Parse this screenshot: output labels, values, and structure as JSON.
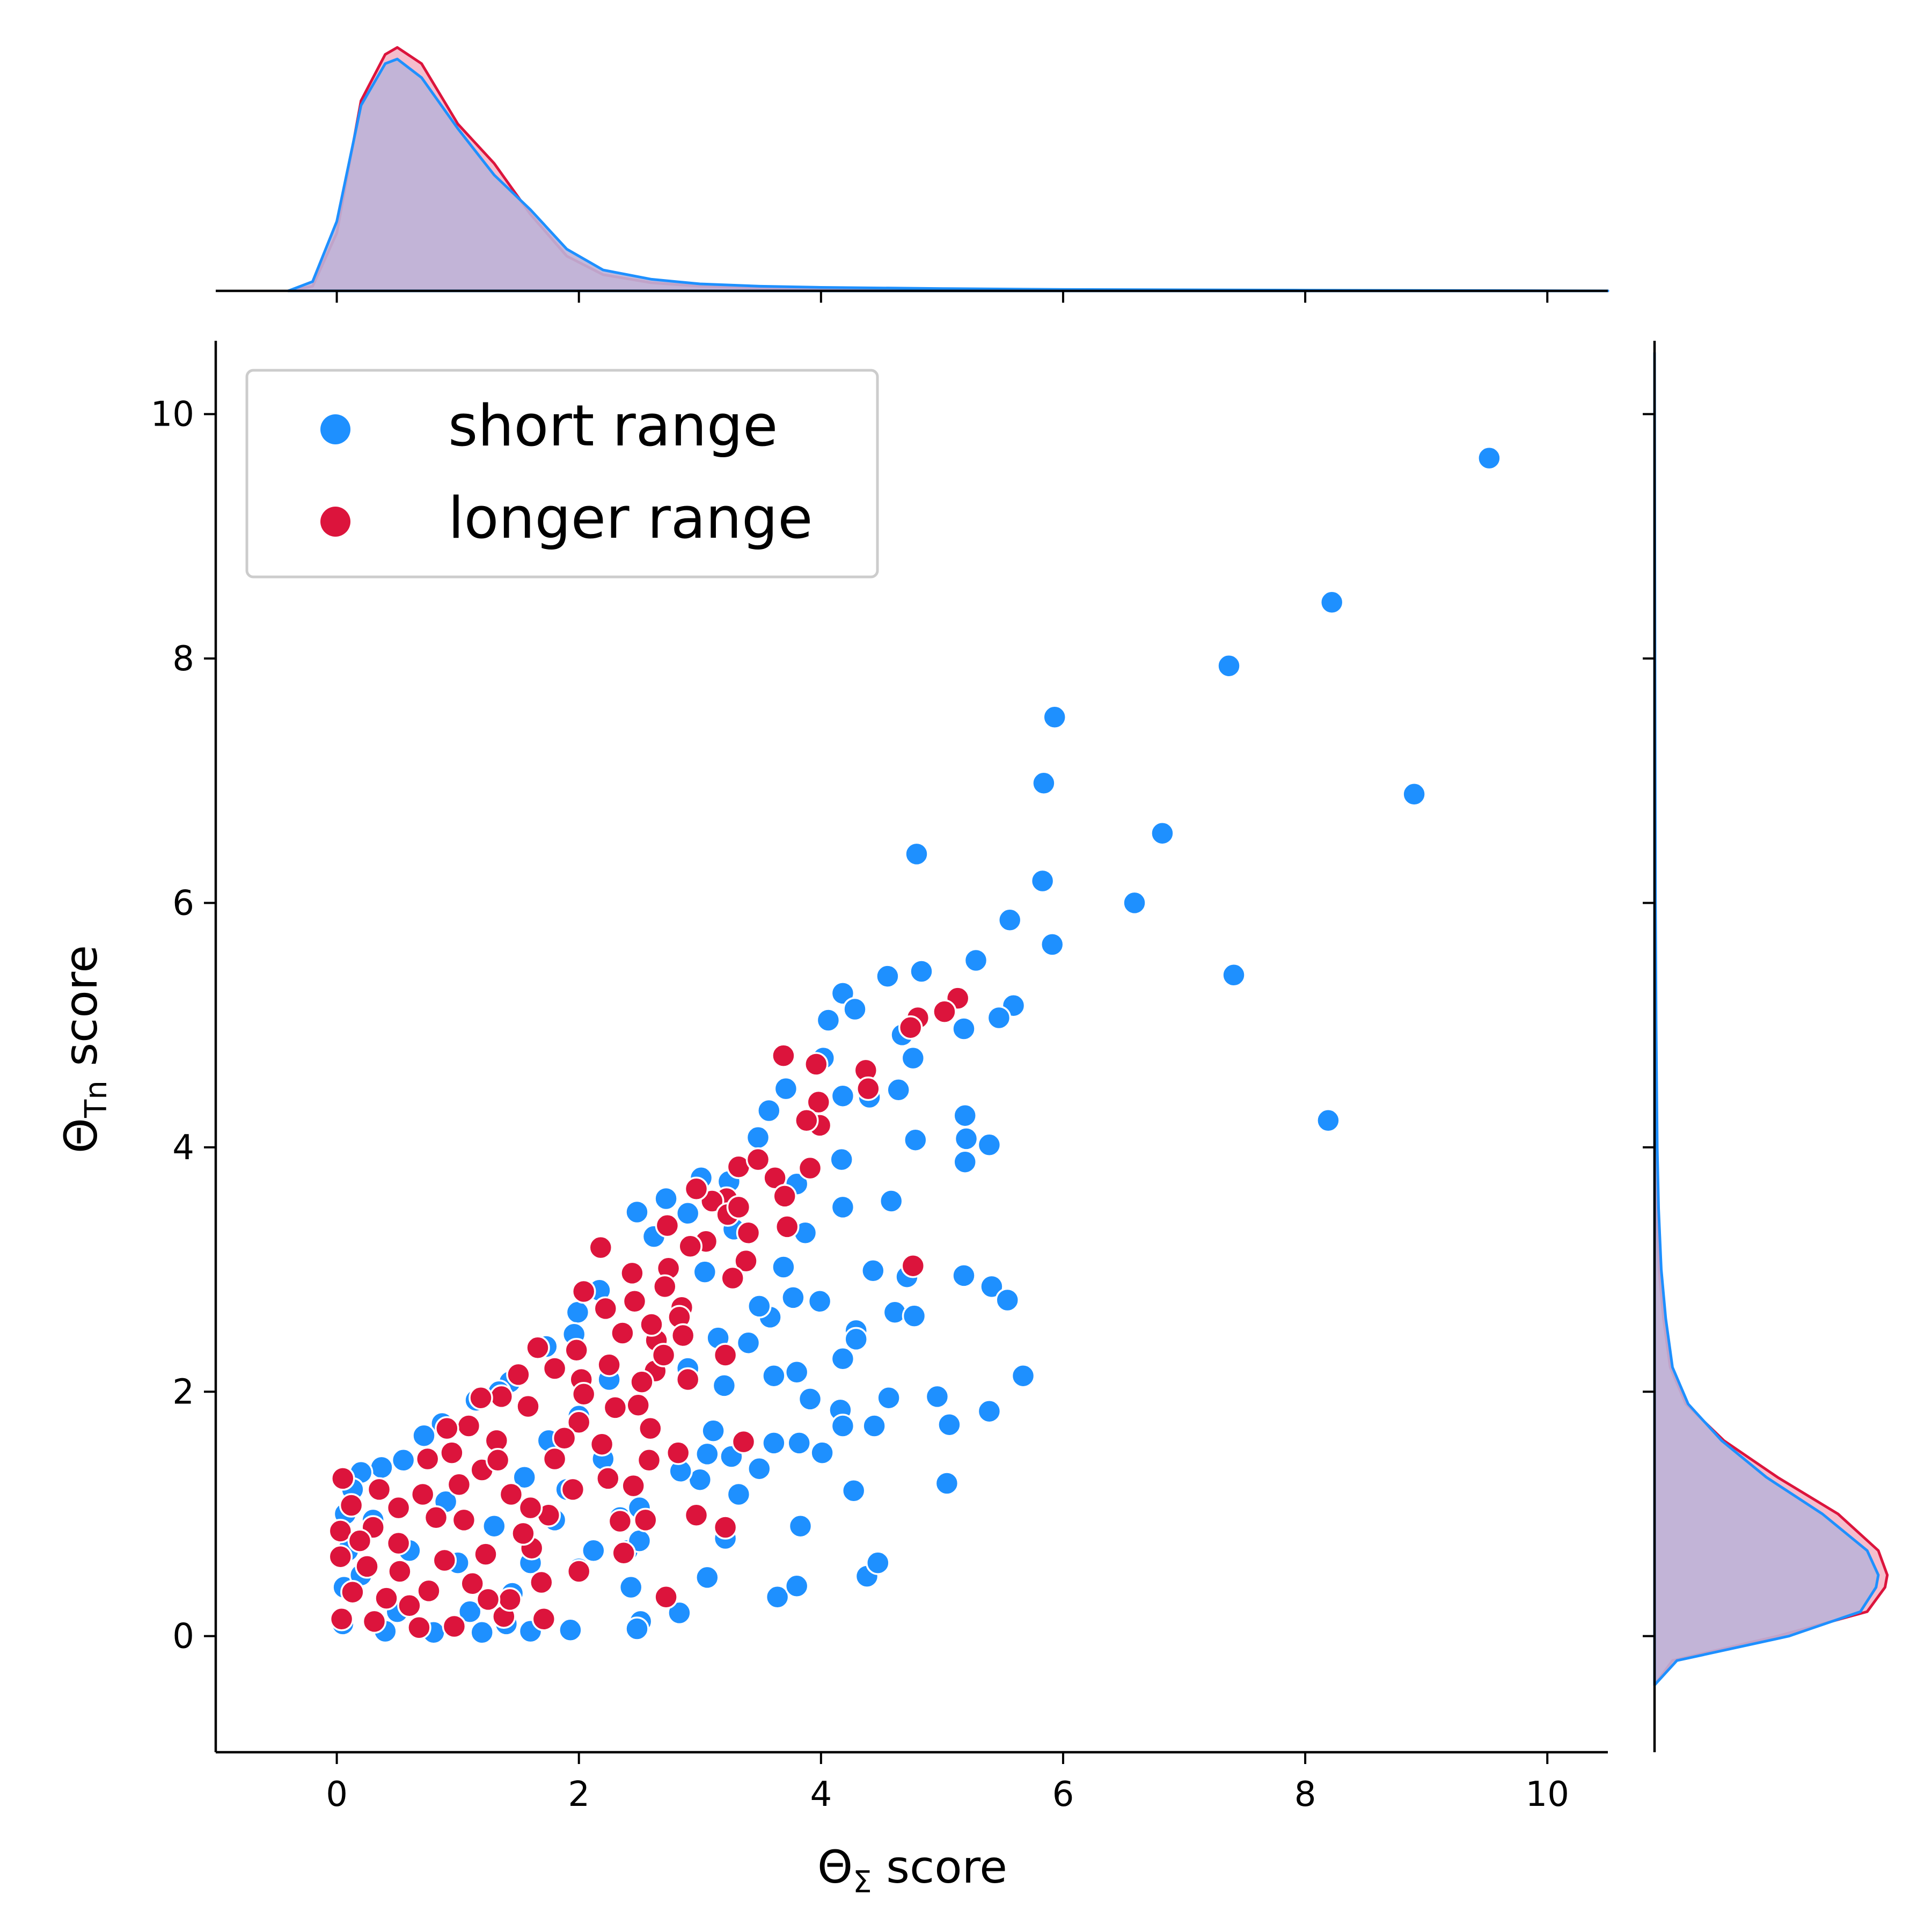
{
  "chart_data": {
    "type": "scatter",
    "subtype": "jointplot with marginal KDE",
    "xlabel": {
      "main": "Θ",
      "sub": "Σ",
      "rest": " score"
    },
    "ylabel": {
      "main": "Θ",
      "sub": "Tn",
      "rest": " score"
    },
    "xlim": [
      -1,
      10.5
    ],
    "ylim": [
      -0.95,
      10.6
    ],
    "xticks": [
      0,
      2,
      4,
      6,
      8,
      10
    ],
    "yticks": [
      0,
      2,
      4,
      6,
      8,
      10
    ],
    "grid": false,
    "legend_position": "top-left",
    "series": [
      {
        "name": "short range",
        "color": "#1e90ff",
        "points": [
          [
            9.52,
            9.64
          ],
          [
            8.22,
            8.46
          ],
          [
            7.37,
            7.94
          ],
          [
            5.93,
            7.52
          ],
          [
            5.84,
            6.98
          ],
          [
            8.9,
            6.89
          ],
          [
            6.82,
            6.57
          ],
          [
            4.79,
            6.4
          ],
          [
            5.83,
            6.18
          ],
          [
            6.59,
            6.0
          ],
          [
            5.56,
            5.86
          ],
          [
            5.91,
            5.66
          ],
          [
            5.28,
            5.53
          ],
          [
            4.83,
            5.44
          ],
          [
            7.41,
            5.41
          ],
          [
            4.55,
            5.4
          ],
          [
            4.18,
            5.26
          ],
          [
            4.28,
            5.13
          ],
          [
            5.59,
            5.16
          ],
          [
            5.47,
            5.06
          ],
          [
            4.06,
            5.04
          ],
          [
            5.18,
            4.97
          ],
          [
            4.67,
            4.92
          ],
          [
            4.76,
            4.73
          ],
          [
            4.02,
            4.73
          ],
          [
            4.64,
            4.47
          ],
          [
            4.18,
            4.42
          ],
          [
            8.19,
            4.22
          ],
          [
            5.19,
            4.26
          ],
          [
            3.57,
            4.3
          ],
          [
            4.4,
            4.41
          ],
          [
            4.78,
            4.06
          ],
          [
            5.2,
            4.07
          ],
          [
            5.39,
            4.02
          ],
          [
            5.19,
            3.88
          ],
          [
            3.48,
            4.08
          ],
          [
            3.71,
            4.48
          ],
          [
            4.17,
            3.9
          ],
          [
            4.58,
            3.56
          ],
          [
            4.18,
            3.51
          ],
          [
            3.87,
            3.3
          ],
          [
            3.8,
            3.7
          ],
          [
            3.69,
            3.02
          ],
          [
            4.43,
            2.99
          ],
          [
            4.71,
            2.94
          ],
          [
            5.18,
            2.95
          ],
          [
            5.41,
            2.86
          ],
          [
            5.54,
            2.75
          ],
          [
            4.61,
            2.65
          ],
          [
            4.77,
            2.62
          ],
          [
            3.99,
            2.74
          ],
          [
            3.77,
            2.77
          ],
          [
            3.58,
            2.61
          ],
          [
            4.29,
            2.5
          ],
          [
            4.29,
            2.43
          ],
          [
            4.18,
            2.27
          ],
          [
            3.8,
            2.16
          ],
          [
            3.61,
            2.13
          ],
          [
            3.4,
            2.4
          ],
          [
            5.67,
            2.13
          ],
          [
            3.91,
            1.94
          ],
          [
            4.16,
            1.85
          ],
          [
            4.56,
            1.95
          ],
          [
            4.96,
            1.96
          ],
          [
            5.39,
            1.84
          ],
          [
            5.06,
            1.73
          ],
          [
            4.18,
            1.72
          ],
          [
            4.44,
            1.72
          ],
          [
            3.82,
            1.58
          ],
          [
            3.61,
            1.58
          ],
          [
            4.01,
            1.5
          ],
          [
            3.49,
            1.37
          ],
          [
            3.26,
            1.47
          ],
          [
            3.06,
            1.49
          ],
          [
            3.0,
            1.28
          ],
          [
            3.32,
            1.16
          ],
          [
            5.04,
            1.25
          ],
          [
            4.27,
            1.19
          ],
          [
            3.83,
            0.9
          ],
          [
            3.21,
            0.8
          ],
          [
            3.06,
            0.48
          ],
          [
            3.64,
            0.32
          ],
          [
            3.8,
            0.41
          ],
          [
            4.38,
            0.49
          ],
          [
            4.47,
            0.6
          ],
          [
            2.83,
            0.19
          ],
          [
            2.51,
            0.12
          ],
          [
            2.43,
            0.4
          ],
          [
            2.72,
            0.33
          ],
          [
            2.48,
            0.06
          ],
          [
            1.93,
            0.05
          ],
          [
            2.12,
            0.7
          ],
          [
            2.4,
            0.7
          ],
          [
            2.5,
            0.78
          ],
          [
            2.34,
            0.97
          ],
          [
            2.5,
            1.05
          ],
          [
            2.84,
            1.35
          ],
          [
            3.11,
            1.68
          ],
          [
            3.2,
            2.05
          ],
          [
            2.9,
            2.19
          ],
          [
            3.15,
            2.44
          ],
          [
            3.49,
            2.7
          ],
          [
            3.04,
            2.98
          ],
          [
            3.28,
            3.33
          ],
          [
            2.9,
            3.46
          ],
          [
            2.62,
            3.27
          ],
          [
            3.01,
            3.75
          ],
          [
            3.24,
            3.72
          ],
          [
            2.48,
            3.47
          ],
          [
            2.72,
            3.58
          ],
          [
            2.17,
            2.83
          ],
          [
            1.99,
            2.65
          ],
          [
            1.96,
            2.47
          ],
          [
            1.73,
            2.37
          ],
          [
            1.43,
            2.08
          ],
          [
            1.34,
            2.0
          ],
          [
            1.15,
            1.93
          ],
          [
            0.87,
            1.74
          ],
          [
            0.72,
            1.64
          ],
          [
            0.55,
            1.44
          ],
          [
            0.37,
            1.38
          ],
          [
            0.2,
            1.34
          ],
          [
            0.13,
            1.2
          ],
          [
            0.07,
            1.0
          ],
          [
            0.09,
            0.7
          ],
          [
            0.06,
            0.4
          ],
          [
            0.05,
            0.1
          ],
          [
            0.4,
            0.04
          ],
          [
            0.8,
            0.03
          ],
          [
            1.2,
            0.03
          ],
          [
            1.6,
            0.04
          ],
          [
            0.5,
            0.2
          ],
          [
            1.1,
            0.2
          ],
          [
            1.4,
            0.1
          ],
          [
            0.2,
            0.5
          ],
          [
            0.6,
            0.7
          ],
          [
            1.0,
            0.6
          ],
          [
            1.3,
            0.9
          ],
          [
            1.55,
            1.3
          ],
          [
            1.75,
            1.6
          ],
          [
            2.0,
            1.8
          ],
          [
            2.25,
            2.1
          ],
          [
            1.9,
            1.2
          ],
          [
            2.2,
            1.45
          ],
          [
            1.8,
            0.95
          ],
          [
            1.6,
            0.6
          ],
          [
            2.0,
            0.55
          ],
          [
            1.45,
            0.35
          ],
          [
            0.9,
            1.1
          ],
          [
            0.3,
            0.95
          ]
        ]
      },
      {
        "name": "longer range",
        "color": "#dc143c",
        "points": [
          [
            5.13,
            5.22
          ],
          [
            5.02,
            5.11
          ],
          [
            4.8,
            5.06
          ],
          [
            4.74,
            4.98
          ],
          [
            3.69,
            4.75
          ],
          [
            3.96,
            4.68
          ],
          [
            4.37,
            4.63
          ],
          [
            4.39,
            4.48
          ],
          [
            3.98,
            4.37
          ],
          [
            3.99,
            4.18
          ],
          [
            3.88,
            4.22
          ],
          [
            3.91,
            3.83
          ],
          [
            3.72,
            3.35
          ],
          [
            4.76,
            3.03
          ],
          [
            3.32,
            3.84
          ],
          [
            3.48,
            3.9
          ],
          [
            3.62,
            3.75
          ],
          [
            3.22,
            3.58
          ],
          [
            3.1,
            3.56
          ],
          [
            3.23,
            3.45
          ],
          [
            3.32,
            3.51
          ],
          [
            2.97,
            3.66
          ],
          [
            2.73,
            3.36
          ],
          [
            2.18,
            3.18
          ],
          [
            3.05,
            3.23
          ],
          [
            3.38,
            3.07
          ],
          [
            2.92,
            3.19
          ],
          [
            3.27,
            2.93
          ],
          [
            2.74,
            3.01
          ],
          [
            2.44,
            2.97
          ],
          [
            2.71,
            2.86
          ],
          [
            2.85,
            2.69
          ],
          [
            2.46,
            2.74
          ],
          [
            2.22,
            2.68
          ],
          [
            2.04,
            2.82
          ],
          [
            2.83,
            2.61
          ],
          [
            2.86,
            2.46
          ],
          [
            3.21,
            2.3
          ],
          [
            2.64,
            2.42
          ],
          [
            2.36,
            2.48
          ],
          [
            2.25,
            2.22
          ],
          [
            1.98,
            2.34
          ],
          [
            2.63,
            2.17
          ],
          [
            2.52,
            2.08
          ],
          [
            2.49,
            1.89
          ],
          [
            2.59,
            1.7
          ],
          [
            2.3,
            1.87
          ],
          [
            2.02,
            2.1
          ],
          [
            1.8,
            2.19
          ],
          [
            1.66,
            2.36
          ],
          [
            1.5,
            2.14
          ],
          [
            1.36,
            1.96
          ],
          [
            1.19,
            1.95
          ],
          [
            1.58,
            1.88
          ],
          [
            2.0,
            1.75
          ],
          [
            2.19,
            1.57
          ],
          [
            2.82,
            1.5
          ],
          [
            3.36,
            1.59
          ],
          [
            2.58,
            1.44
          ],
          [
            2.24,
            1.29
          ],
          [
            2.45,
            1.23
          ],
          [
            2.55,
            0.95
          ],
          [
            2.34,
            0.94
          ],
          [
            2.97,
            0.99
          ],
          [
            3.21,
            0.89
          ],
          [
            2.37,
            0.68
          ],
          [
            2.0,
            0.53
          ],
          [
            2.72,
            0.32
          ],
          [
            1.69,
            0.44
          ],
          [
            1.61,
            0.72
          ],
          [
            1.75,
            0.99
          ],
          [
            1.44,
            1.16
          ],
          [
            1.2,
            1.36
          ],
          [
            1.32,
            1.6
          ],
          [
            1.09,
            1.72
          ],
          [
            0.91,
            1.7
          ],
          [
            0.75,
            1.45
          ],
          [
            1.01,
            1.24
          ],
          [
            0.71,
            1.16
          ],
          [
            0.51,
            1.05
          ],
          [
            0.82,
            0.97
          ],
          [
            0.3,
            0.89
          ],
          [
            0.12,
            1.07
          ],
          [
            0.05,
            1.29
          ],
          [
            0.03,
            0.86
          ],
          [
            0.03,
            0.65
          ],
          [
            0.19,
            0.78
          ],
          [
            0.51,
            0.76
          ],
          [
            0.89,
            0.62
          ],
          [
            1.23,
            0.67
          ],
          [
            1.54,
            0.84
          ],
          [
            1.12,
            0.43
          ],
          [
            0.76,
            0.37
          ],
          [
            0.41,
            0.31
          ],
          [
            0.13,
            0.36
          ],
          [
            0.04,
            0.14
          ],
          [
            0.31,
            0.12
          ],
          [
            0.68,
            0.07
          ],
          [
            0.97,
            0.08
          ],
          [
            1.38,
            0.16
          ],
          [
            1.71,
            0.14
          ],
          [
            1.43,
            0.3
          ],
          [
            0.52,
            0.53
          ],
          [
            0.25,
            0.57
          ],
          [
            1.05,
            0.95
          ],
          [
            1.33,
            1.44
          ],
          [
            1.8,
            1.45
          ],
          [
            2.04,
            1.98
          ],
          [
            1.88,
            1.62
          ],
          [
            2.7,
            2.3
          ],
          [
            2.9,
            2.1
          ],
          [
            3.4,
            3.3
          ],
          [
            3.7,
            3.6
          ],
          [
            2.6,
            2.55
          ],
          [
            1.95,
            1.2
          ],
          [
            1.6,
            1.05
          ],
          [
            1.25,
            0.3
          ],
          [
            0.6,
            0.25
          ],
          [
            0.35,
            1.2
          ],
          [
            0.95,
            1.5
          ]
        ]
      }
    ],
    "marginal_x_kde": {
      "x": [
        -0.4,
        -0.2,
        0.0,
        0.2,
        0.4,
        0.5,
        0.7,
        1.0,
        1.3,
        1.6,
        1.9,
        2.2,
        2.6,
        3.0,
        3.5,
        4.0,
        5.0,
        6.0,
        8.0,
        10.5
      ],
      "short range": [
        0.0,
        0.04,
        0.3,
        0.8,
        0.98,
        1.0,
        0.92,
        0.7,
        0.5,
        0.35,
        0.18,
        0.09,
        0.05,
        0.03,
        0.02,
        0.015,
        0.01,
        0.006,
        0.003,
        0.0
      ],
      "longer range": [
        0.0,
        0.02,
        0.25,
        0.82,
        1.02,
        1.05,
        0.98,
        0.72,
        0.55,
        0.33,
        0.15,
        0.07,
        0.035,
        0.02,
        0.012,
        0.008,
        0.004,
        0.002,
        0.001,
        0.0
      ]
    },
    "marginal_y_kde": {
      "y": [
        -0.4,
        -0.2,
        0.0,
        0.2,
        0.4,
        0.5,
        0.7,
        1.0,
        1.3,
        1.6,
        1.9,
        2.2,
        2.6,
        3.0,
        3.5,
        4.0,
        5.0,
        6.0,
        8.0,
        10.5
      ],
      "short range": [
        0.0,
        0.1,
        0.6,
        0.92,
        0.99,
        1.0,
        0.95,
        0.75,
        0.5,
        0.3,
        0.15,
        0.08,
        0.05,
        0.03,
        0.018,
        0.012,
        0.007,
        0.004,
        0.002,
        0.0
      ],
      "longer range": [
        0.0,
        0.08,
        0.55,
        0.95,
        1.03,
        1.04,
        1.0,
        0.82,
        0.55,
        0.31,
        0.14,
        0.07,
        0.04,
        0.02,
        0.01,
        0.006,
        0.003,
        0.001,
        0.0,
        0.0
      ]
    }
  }
}
